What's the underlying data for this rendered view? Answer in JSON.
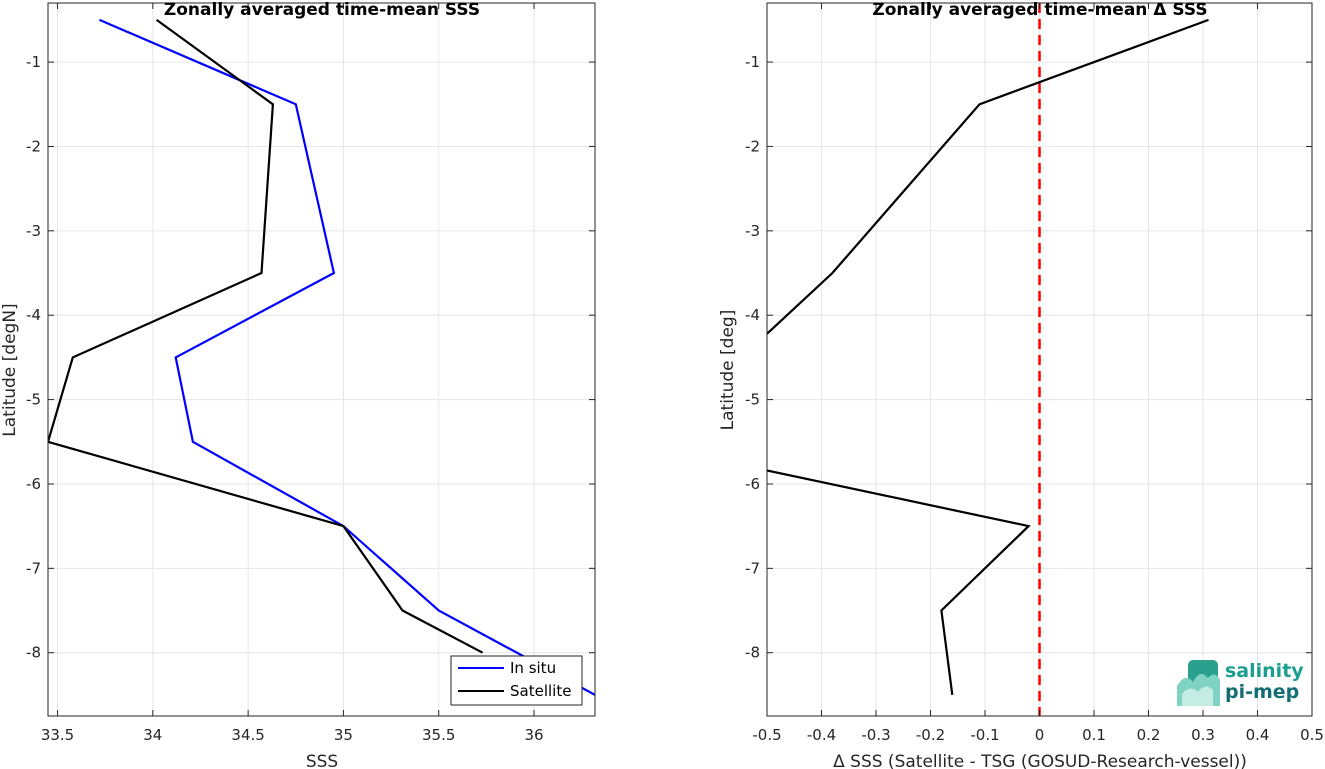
{
  "chart_data": [
    {
      "type": "line",
      "title": "Zonally averaged time-mean SSS",
      "xlabel": "SSS",
      "ylabel": "Latitude [degN]",
      "xlim": [
        33.45,
        36.32
      ],
      "ylim": [
        -8.75,
        -0.3
      ],
      "xticks": [
        33.5,
        34,
        34.5,
        35,
        35.5,
        36
      ],
      "xtick_labels": [
        "33.5",
        "34",
        "34.5",
        "35",
        "35.5",
        "36"
      ],
      "yticks": [
        -1,
        -2,
        -3,
        -4,
        -5,
        -6,
        -7,
        -8
      ],
      "ytick_labels": [
        "-1",
        "-2",
        "-3",
        "-4",
        "-5",
        "-6",
        "-7",
        "-8"
      ],
      "grid": true,
      "legend_position": "bottom-right",
      "series": [
        {
          "name": "In situ",
          "color": "#0000ff",
          "x": [
            33.72,
            34.75,
            34.95,
            34.12,
            34.21,
            35.0,
            35.5,
            36.32
          ],
          "y": [
            -0.5,
            -1.5,
            -3.5,
            -4.5,
            -5.5,
            -6.5,
            -7.5,
            -8.5
          ]
        },
        {
          "name": "Satellite",
          "color": "#000000",
          "x": [
            34.02,
            34.63,
            34.57,
            33.58,
            33.45,
            35.0,
            35.31,
            35.73
          ],
          "y": [
            -0.5,
            -1.5,
            -3.5,
            -4.5,
            -5.5,
            -6.5,
            -7.5,
            -8.0
          ]
        }
      ]
    },
    {
      "type": "line",
      "title": "Zonally averaged time-mean Δ SSS",
      "xlabel": "Δ SSS (Satellite - TSG (GOSUD-Research-vessel))",
      "ylabel": "Latitude [deg]",
      "xlim": [
        -0.5,
        0.5
      ],
      "ylim": [
        -8.75,
        -0.3
      ],
      "xticks": [
        -0.5,
        -0.4,
        -0.3,
        -0.2,
        -0.1,
        0,
        0.1,
        0.2,
        0.3,
        0.4,
        0.5
      ],
      "xtick_labels": [
        "-0.5",
        "-0.4",
        "-0.3",
        "-0.2",
        "-0.1",
        "0",
        "0.1",
        "0.2",
        "0.3",
        "0.4",
        "0.5"
      ],
      "yticks": [
        -1,
        -2,
        -3,
        -4,
        -5,
        -6,
        -7,
        -8
      ],
      "ytick_labels": [
        "-1",
        "-2",
        "-3",
        "-4",
        "-5",
        "-6",
        "-7",
        "-8"
      ],
      "grid": true,
      "reference_line": {
        "x": 0,
        "color": "#ff0000",
        "style": "dashed"
      },
      "series": [
        {
          "color": "#000000",
          "segments": [
            {
              "x": [
                0.31,
                -0.11,
                -0.38,
                -0.5
              ],
              "y": [
                -0.5,
                -1.5,
                -3.5,
                -4.22
              ]
            },
            {
              "x": [
                -0.5,
                -0.02,
                -0.18,
                -0.16
              ],
              "y": [
                -5.84,
                -6.5,
                -7.5,
                -8.5
              ]
            }
          ]
        }
      ]
    }
  ],
  "logo": {
    "line1": "salinity",
    "line2": "pi-mep"
  }
}
